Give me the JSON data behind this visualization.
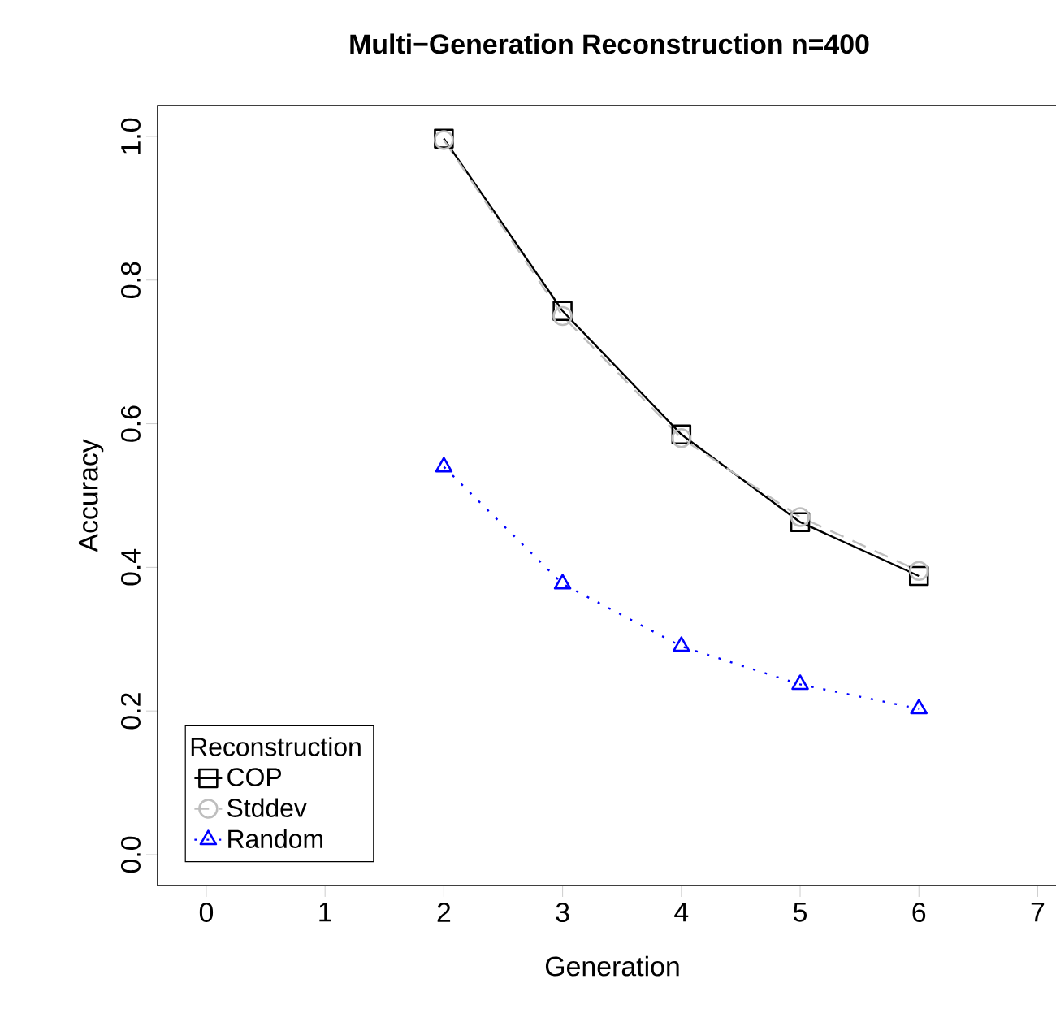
{
  "chart_data": {
    "type": "line",
    "title": "Multi−Generation Reconstruction n=400",
    "xlabel": "Generation",
    "ylabel": "Accuracy",
    "legend_title": "Reconstruction",
    "x": [
      2,
      3,
      4,
      5,
      6
    ],
    "series": [
      {
        "name": "COP",
        "color": "#000000",
        "marker": "square",
        "line_style": "solid",
        "values": [
          0.997,
          0.757,
          0.585,
          0.463,
          0.388
        ]
      },
      {
        "name": "Stddev",
        "color": "#bebebe",
        "marker": "circle",
        "line_style": "dashed",
        "values": [
          0.995,
          0.75,
          0.58,
          0.47,
          0.395
        ]
      },
      {
        "name": "Random",
        "color": "#0000ff",
        "marker": "triangle",
        "line_style": "dotted",
        "values": [
          0.54,
          0.377,
          0.29,
          0.237,
          0.203
        ]
      }
    ],
    "xlim": [
      -0.41,
      7.25
    ],
    "ylim": [
      -0.043,
      1.043
    ],
    "xticks": [
      0,
      1,
      2,
      3,
      4,
      5,
      6,
      7
    ],
    "yticks": [
      {
        "value": 0,
        "label": "0.0"
      },
      0.2,
      0.4,
      0.6,
      0.8,
      {
        "value": 1,
        "label": "1.0"
      }
    ],
    "grid": false,
    "legend": "bottom left"
  }
}
